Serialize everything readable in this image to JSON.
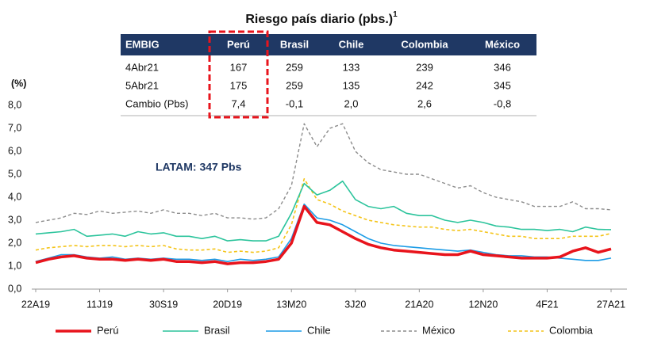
{
  "table": {
    "title": "Riesgo país diario (pbs.)",
    "title_note": "1",
    "header": [
      "EMBIG",
      "Perú",
      "Brasil",
      "Chile",
      "Colombia",
      "México"
    ],
    "rows": [
      [
        "4Abr21",
        167,
        259,
        133,
        239,
        346
      ],
      [
        "5Abr21",
        175,
        259,
        135,
        242,
        345
      ],
      [
        "Cambio (Pbs)",
        "7,4",
        "-0,1",
        "2,0",
        "2,6",
        "-0,8"
      ]
    ]
  },
  "chart_data": {
    "type": "line",
    "y_label": "(%)",
    "annotation": "LATAM: 347 Pbs",
    "categories": [
      "22A19",
      null,
      null,
      null,
      null,
      "11J19",
      null,
      null,
      null,
      null,
      "30S19",
      null,
      null,
      null,
      null,
      "20D19",
      null,
      null,
      null,
      null,
      "13M20",
      null,
      null,
      null,
      null,
      "3J20",
      null,
      null,
      null,
      null,
      "21A20",
      null,
      null,
      null,
      null,
      "12N20",
      null,
      null,
      null,
      null,
      "4F21",
      null,
      null,
      null,
      null,
      "27A21"
    ],
    "ylim": [
      0,
      8
    ],
    "yticks": [
      {
        "value": 0,
        "label": "0,0"
      },
      {
        "value": 1,
        "label": "1,0"
      },
      {
        "value": 2,
        "label": "2,0"
      },
      {
        "value": 3,
        "label": "3,0"
      },
      {
        "value": 4,
        "label": "4,0"
      },
      {
        "value": 5,
        "label": "5,0"
      },
      {
        "value": 6,
        "label": "6,0"
      },
      {
        "value": 7,
        "label": "7,0"
      },
      {
        "value": 8,
        "label": "8,0"
      }
    ],
    "grid": false,
    "legend": "bottom",
    "series": [
      {
        "name": "Perú",
        "color": "#e8141c",
        "width": 3.5,
        "dashed": false,
        "values": [
          1.15,
          1.3,
          1.4,
          1.45,
          1.35,
          1.3,
          1.3,
          1.25,
          1.3,
          1.25,
          1.3,
          1.2,
          1.2,
          1.15,
          1.2,
          1.1,
          1.15,
          1.15,
          1.2,
          1.3,
          2.0,
          3.6,
          2.9,
          2.8,
          2.5,
          2.2,
          1.95,
          1.8,
          1.7,
          1.65,
          1.6,
          1.55,
          1.5,
          1.5,
          1.65,
          1.5,
          1.45,
          1.4,
          1.35,
          1.35,
          1.35,
          1.4,
          1.65,
          1.8,
          1.6,
          1.75
        ]
      },
      {
        "name": "Brasil",
        "color": "#2cc49c",
        "width": 1.6,
        "dashed": false,
        "values": [
          2.4,
          2.45,
          2.5,
          2.6,
          2.3,
          2.35,
          2.4,
          2.3,
          2.5,
          2.4,
          2.45,
          2.3,
          2.3,
          2.2,
          2.3,
          2.1,
          2.15,
          2.1,
          2.1,
          2.3,
          3.3,
          4.6,
          4.1,
          4.3,
          4.7,
          3.9,
          3.6,
          3.5,
          3.6,
          3.3,
          3.2,
          3.2,
          3.0,
          2.9,
          3.0,
          2.9,
          2.75,
          2.7,
          2.6,
          2.6,
          2.55,
          2.6,
          2.5,
          2.7,
          2.6,
          2.59
        ]
      },
      {
        "name": "Chile",
        "color": "#1c9ce6",
        "width": 1.6,
        "dashed": false,
        "values": [
          1.2,
          1.35,
          1.5,
          1.5,
          1.4,
          1.35,
          1.4,
          1.3,
          1.35,
          1.3,
          1.35,
          1.3,
          1.3,
          1.25,
          1.3,
          1.2,
          1.3,
          1.25,
          1.3,
          1.4,
          2.2,
          3.7,
          3.1,
          3.0,
          2.8,
          2.5,
          2.2,
          2.0,
          1.9,
          1.85,
          1.8,
          1.75,
          1.7,
          1.65,
          1.7,
          1.6,
          1.5,
          1.45,
          1.45,
          1.4,
          1.4,
          1.35,
          1.3,
          1.25,
          1.25,
          1.35
        ]
      },
      {
        "name": "México",
        "color": "#8c8c8c",
        "width": 1.4,
        "dashed": true,
        "values": [
          2.9,
          3.0,
          3.1,
          3.3,
          3.25,
          3.4,
          3.3,
          3.35,
          3.4,
          3.3,
          3.45,
          3.3,
          3.3,
          3.2,
          3.3,
          3.1,
          3.1,
          3.05,
          3.1,
          3.5,
          4.5,
          7.2,
          6.2,
          7.0,
          7.2,
          6.0,
          5.5,
          5.2,
          5.1,
          5.0,
          5.0,
          4.8,
          4.6,
          4.4,
          4.5,
          4.2,
          4.0,
          3.9,
          3.8,
          3.6,
          3.6,
          3.6,
          3.8,
          3.5,
          3.5,
          3.45
        ]
      },
      {
        "name": "Colombia",
        "color": "#f4c419",
        "width": 1.6,
        "dashed": true,
        "values": [
          1.7,
          1.8,
          1.85,
          1.9,
          1.85,
          1.9,
          1.9,
          1.85,
          1.9,
          1.85,
          1.9,
          1.75,
          1.7,
          1.7,
          1.75,
          1.6,
          1.65,
          1.6,
          1.65,
          1.8,
          2.8,
          4.8,
          3.9,
          3.7,
          3.4,
          3.2,
          3.0,
          2.9,
          2.8,
          2.75,
          2.7,
          2.7,
          2.6,
          2.55,
          2.6,
          2.5,
          2.4,
          2.3,
          2.3,
          2.2,
          2.2,
          2.2,
          2.3,
          2.3,
          2.3,
          2.42
        ]
      }
    ]
  }
}
